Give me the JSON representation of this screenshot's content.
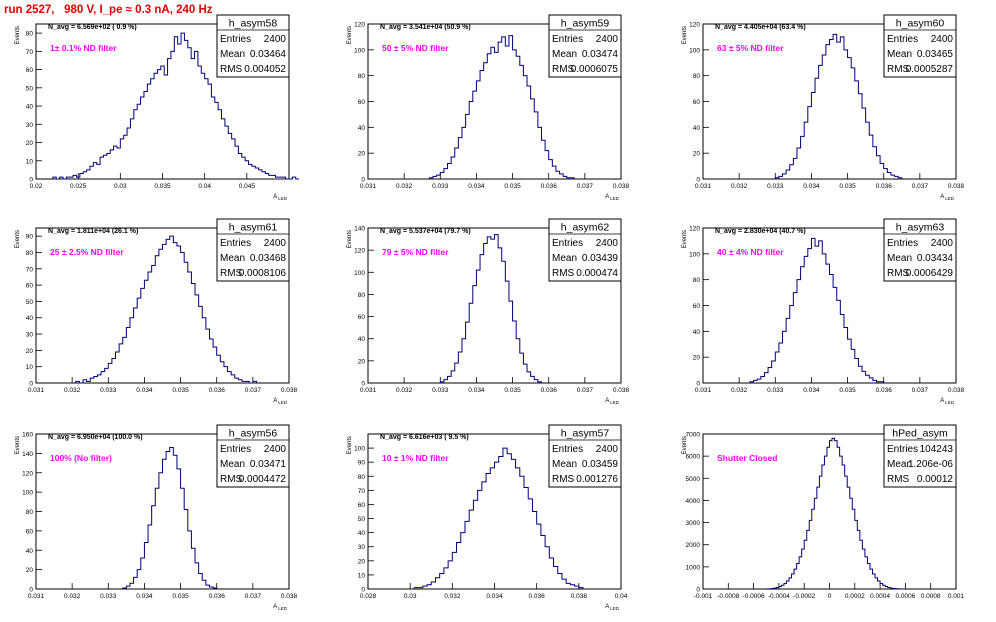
{
  "page": {
    "run_title": "run 2527,   980 V, I_pe ≈ 0.3 nA, 240 Hz"
  },
  "stats_labels": {
    "entries": "Entries",
    "mean": "Mean",
    "rms": "RMS"
  },
  "colors": {
    "hist_line": "#00007a",
    "annotation": "#ff00ff",
    "run_title": "#e00000",
    "axis": "#000000"
  },
  "chart_data": [
    {
      "type": "histogram",
      "name": "h_asym58",
      "title": "N_avg = 6.569e+02 ( 0.9 %)",
      "label": "1± 0.1% ND filter",
      "ylabel": "Events",
      "xlabel": "A_LED",
      "xlim": [
        0.02,
        0.05
      ],
      "ylim": [
        0,
        85
      ],
      "xticks": [
        "0.02",
        "0.025",
        "0.03",
        "0.035",
        "0.04",
        "0.045"
      ],
      "yticks": [
        "0",
        "10",
        "20",
        "30",
        "40",
        "50",
        "60",
        "70",
        "80"
      ],
      "stats": {
        "entries": "2400",
        "mean": "0.03464",
        "rms": "0.004052"
      },
      "bin_start": 0.022,
      "bin_width": 0.0004,
      "values": [
        1,
        0,
        1,
        0,
        1,
        1,
        2,
        1,
        3,
        4,
        5,
        7,
        9,
        8,
        12,
        13,
        14,
        16,
        18,
        17,
        22,
        24,
        28,
        33,
        38,
        41,
        45,
        48,
        52,
        55,
        58,
        60,
        62,
        57,
        66,
        70,
        78,
        74,
        80,
        76,
        72,
        66,
        70,
        62,
        58,
        55,
        52,
        45,
        42,
        38,
        33,
        29,
        25,
        22,
        18,
        14,
        12,
        10,
        8,
        7,
        6,
        5,
        4,
        3,
        2,
        2,
        1,
        1,
        1,
        0,
        0,
        1,
        0
      ]
    },
    {
      "type": "histogram",
      "name": "h_asym59",
      "title": "N_avg = 3.541e+04 (50.9 %)",
      "label": "50 ± 5% ND filter",
      "ylabel": "Events",
      "xlabel": "A_LED",
      "xlim": [
        0.031,
        0.038
      ],
      "ylim": [
        0,
        120
      ],
      "xticks": [
        "0.031",
        "0.032",
        "0.033",
        "0.034",
        "0.035",
        "0.036",
        "0.037",
        "0.038"
      ],
      "yticks": [
        "0",
        "20",
        "40",
        "60",
        "80",
        "100",
        "120"
      ],
      "stats": {
        "entries": "2400",
        "mean": "0.03474",
        "rms": "0.0006075"
      },
      "bin_start": 0.0327,
      "bin_width": 0.0001,
      "values": [
        1,
        2,
        3,
        5,
        8,
        12,
        17,
        24,
        32,
        40,
        50,
        60,
        68,
        76,
        84,
        90,
        97,
        102,
        98,
        106,
        110,
        103,
        111,
        100,
        95,
        88,
        80,
        72,
        62,
        52,
        40,
        30,
        22,
        15,
        10,
        6,
        4,
        2,
        1,
        1
      ]
    },
    {
      "type": "histogram",
      "name": "h_asym60",
      "title": "N_avg = 4.405e+04 (63.4 %)",
      "label": "63 ± 5% ND filter",
      "ylabel": "Events",
      "xlabel": "A_LED",
      "xlim": [
        0.031,
        0.038
      ],
      "ylim": [
        0,
        120
      ],
      "xticks": [
        "0.031",
        "0.032",
        "0.033",
        "0.034",
        "0.035",
        "0.036",
        "0.037",
        "0.038"
      ],
      "yticks": [
        "0",
        "20",
        "40",
        "60",
        "80",
        "100",
        "120"
      ],
      "stats": {
        "entries": "2400",
        "mean": "0.03465",
        "rms": "0.0005287"
      },
      "bin_start": 0.033,
      "bin_width": 0.0001,
      "values": [
        1,
        2,
        4,
        7,
        11,
        16,
        24,
        33,
        44,
        56,
        67,
        78,
        88,
        96,
        104,
        108,
        112,
        106,
        110,
        100,
        94,
        86,
        76,
        66,
        55,
        44,
        34,
        25,
        18,
        12,
        8,
        5,
        3,
        2,
        1
      ]
    },
    {
      "type": "histogram",
      "name": "h_asym61",
      "title": "N_avg = 1.811e+04 (26.1 %)",
      "label": "25 ± 2.5% ND filter",
      "ylabel": "Events",
      "xlabel": "A_LED",
      "xlim": [
        0.031,
        0.038
      ],
      "ylim": [
        0,
        95
      ],
      "xticks": [
        "0.031",
        "0.032",
        "0.033",
        "0.034",
        "0.035",
        "0.036",
        "0.037",
        "0.038"
      ],
      "yticks": [
        "0",
        "10",
        "20",
        "30",
        "40",
        "50",
        "60",
        "70",
        "80",
        "90"
      ],
      "stats": {
        "entries": "2400",
        "mean": "0.03468",
        "rms": "0.0008106"
      },
      "bin_start": 0.0321,
      "bin_width": 0.0001,
      "values": [
        1,
        0,
        2,
        1,
        3,
        4,
        5,
        7,
        9,
        12,
        15,
        19,
        24,
        28,
        34,
        40,
        46,
        52,
        58,
        63,
        68,
        72,
        78,
        82,
        85,
        88,
        90,
        86,
        84,
        80,
        74,
        68,
        61,
        54,
        47,
        40,
        33,
        27,
        22,
        17,
        13,
        10,
        7,
        5,
        3,
        2,
        1,
        1,
        0,
        1
      ]
    },
    {
      "type": "histogram",
      "name": "h_asym62",
      "title": "N_avg = 5.537e+04 (79.7 %)",
      "label": "79 ± 5% ND filter",
      "ylabel": "Events",
      "xlabel": "A_LED",
      "xlim": [
        0.031,
        0.038
      ],
      "ylim": [
        0,
        140
      ],
      "xticks": [
        "0.031",
        "0.032",
        "0.033",
        "0.034",
        "0.035",
        "0.036",
        "0.037",
        "0.038"
      ],
      "yticks": [
        "0",
        "20",
        "40",
        "60",
        "80",
        "100",
        "120",
        "140"
      ],
      "stats": {
        "entries": "2400",
        "mean": "0.03439",
        "rms": "0.000474"
      },
      "bin_start": 0.033,
      "bin_width": 0.0001,
      "values": [
        1,
        3,
        6,
        11,
        18,
        28,
        40,
        55,
        72,
        88,
        102,
        116,
        126,
        132,
        130,
        134,
        122,
        110,
        92,
        74,
        56,
        40,
        27,
        17,
        10,
        6,
        3,
        1
      ]
    },
    {
      "type": "histogram",
      "name": "h_asym63",
      "title": "N_avg = 2.830e+04 (40.7 %)",
      "label": "40 ± 4% ND filter",
      "ylabel": "Events",
      "xlabel": "A_LED",
      "xlim": [
        0.031,
        0.038
      ],
      "ylim": [
        0,
        120
      ],
      "xticks": [
        "0.031",
        "0.032",
        "0.033",
        "0.034",
        "0.035",
        "0.036",
        "0.037",
        "0.038"
      ],
      "yticks": [
        "0",
        "20",
        "40",
        "60",
        "80",
        "100",
        "120"
      ],
      "stats": {
        "entries": "2400",
        "mean": "0.03434",
        "rms": "0.0006429"
      },
      "bin_start": 0.0323,
      "bin_width": 0.0001,
      "values": [
        1,
        2,
        3,
        5,
        8,
        12,
        17,
        24,
        31,
        40,
        50,
        60,
        70,
        80,
        90,
        98,
        104,
        112,
        106,
        110,
        100,
        92,
        84,
        74,
        64,
        53,
        43,
        34,
        26,
        19,
        13,
        9,
        6,
        4,
        2,
        1,
        1
      ]
    },
    {
      "type": "histogram",
      "name": "h_asym56",
      "title": "N_avg = 6.950e+04 (100.0 %)",
      "label": "100% (No filter)",
      "ylabel": "Events",
      "xlabel": "A_LED",
      "xlim": [
        0.031,
        0.038
      ],
      "ylim": [
        0,
        160
      ],
      "xticks": [
        "0.031",
        "0.032",
        "0.033",
        "0.034",
        "0.035",
        "0.036",
        "0.037",
        "0.038"
      ],
      "yticks": [
        "0",
        "20",
        "40",
        "60",
        "80",
        "100",
        "120",
        "140",
        "160"
      ],
      "stats": {
        "entries": "2400",
        "mean": "0.03471",
        "rms": "0.0004472"
      },
      "bin_start": 0.0334,
      "bin_width": 0.0001,
      "values": [
        1,
        3,
        6,
        12,
        20,
        32,
        48,
        66,
        86,
        104,
        120,
        134,
        142,
        146,
        138,
        124,
        104,
        82,
        60,
        42,
        27,
        16,
        9,
        4,
        2,
        1
      ]
    },
    {
      "type": "histogram",
      "name": "h_asym57",
      "title": "N_avg = 6.616e+03 ( 9.5 %)",
      "label": "10 ± 1% ND filter",
      "ylabel": "Events",
      "xlabel": "A_LED",
      "xlim": [
        0.028,
        0.04
      ],
      "ylim": [
        0,
        110
      ],
      "xticks": [
        "0.028",
        "0.03",
        "0.032",
        "0.034",
        "0.036",
        "0.038",
        "0.04"
      ],
      "yticks": [
        "0",
        "10",
        "20",
        "30",
        "40",
        "50",
        "60",
        "70",
        "80",
        "90",
        "100"
      ],
      "stats": {
        "entries": "2400",
        "mean": "0.03459",
        "rms": "0.001276"
      },
      "bin_start": 0.0302,
      "bin_width": 0.0002,
      "values": [
        1,
        1,
        2,
        3,
        5,
        8,
        11,
        15,
        20,
        26,
        33,
        40,
        48,
        56,
        63,
        70,
        76,
        82,
        86,
        90,
        94,
        100,
        96,
        92,
        86,
        80,
        72,
        64,
        55,
        46,
        38,
        30,
        22,
        16,
        11,
        7,
        4,
        3,
        2,
        1
      ]
    },
    {
      "type": "histogram",
      "name": "hPed_asym",
      "title": "",
      "label": "Shutter Closed",
      "ylabel": "Events",
      "xlabel": "",
      "xlim": [
        -0.001,
        0.001
      ],
      "ylim": [
        0,
        7000
      ],
      "xticks": [
        "-0.001",
        "-0.0008",
        "-0.0006",
        "-0.0004",
        "-0.0002",
        "0",
        "0.0002",
        "0.0004",
        "0.0006",
        "0.0008",
        "0.001"
      ],
      "yticks": [
        "0",
        "1000",
        "2000",
        "3000",
        "4000",
        "5000",
        "6000",
        "7000"
      ],
      "stats": {
        "entries": "104243",
        "mean": "1.206e-06",
        "rms": "0.00012"
      },
      "bin_start": -0.0005,
      "bin_width": 2e-05,
      "values": [
        5,
        10,
        20,
        40,
        70,
        110,
        170,
        250,
        360,
        500,
        680,
        900,
        1150,
        1450,
        1800,
        2200,
        2650,
        3100,
        3600,
        4100,
        4600,
        5100,
        5600,
        6000,
        6400,
        6700,
        6800,
        6700,
        6400,
        6000,
        5600,
        5100,
        4600,
        4100,
        3600,
        3100,
        2650,
        2200,
        1800,
        1450,
        1150,
        900,
        680,
        500,
        360,
        250,
        170,
        110,
        70,
        40,
        20,
        10,
        5
      ]
    }
  ]
}
